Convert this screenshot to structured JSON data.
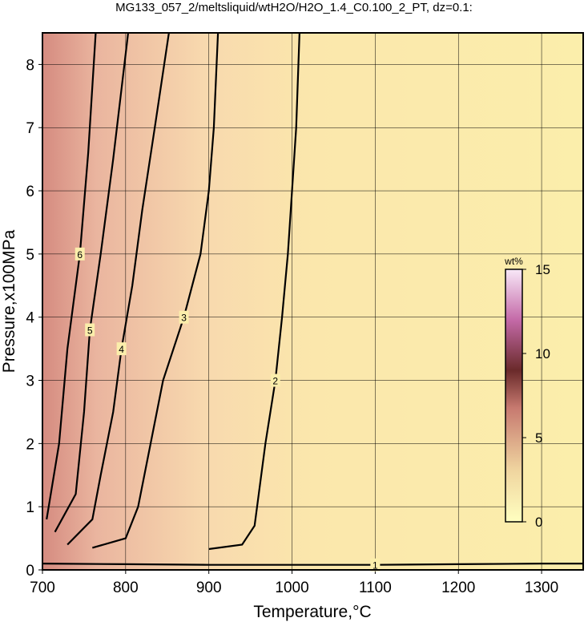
{
  "chart_data": {
    "type": "contour",
    "title": "MG133_057_2/meltsliquid/wtH2O/H2O_1.4_C0.100_2_PT, dz=0.1:",
    "xlabel": "Temperature,°C",
    "ylabel": "Pressure,x100MPa",
    "xlim": [
      700,
      1350
    ],
    "ylim": [
      0,
      8.5
    ],
    "xticks": [
      700,
      800,
      900,
      1000,
      1100,
      1200,
      1300
    ],
    "yticks": [
      0,
      1,
      2,
      3,
      4,
      5,
      6,
      7,
      8
    ],
    "grid": true,
    "color": "#000000",
    "contours": [
      {
        "level": 1,
        "x": [
          700,
          800,
          900,
          1000,
          1100,
          1200,
          1300,
          1350
        ],
        "y": [
          0.1,
          0.09,
          0.08,
          0.08,
          0.08,
          0.09,
          0.1,
          0.1
        ]
      },
      {
        "level": 2,
        "x": [
          900,
          940,
          955,
          960,
          968,
          980,
          988,
          995,
          1000,
          1005,
          1009
        ],
        "y": [
          0.33,
          0.4,
          0.7,
          1.2,
          2,
          3,
          4,
          5,
          6,
          7,
          8.5
        ]
      },
      {
        "level": 3,
        "x": [
          760,
          800,
          815,
          830,
          845,
          870,
          890,
          900,
          906,
          911
        ],
        "y": [
          0.35,
          0.5,
          1,
          2,
          3,
          4,
          5,
          6,
          7,
          8.5
        ]
      },
      {
        "level": 4,
        "x": [
          730,
          760,
          770,
          785,
          795,
          808,
          820,
          835,
          852
        ],
        "y": [
          0.4,
          0.8,
          1.5,
          2.5,
          3.5,
          4.5,
          5.7,
          7,
          8.5
        ]
      },
      {
        "level": 5,
        "x": [
          715,
          740,
          750,
          757,
          770,
          785,
          803
        ],
        "y": [
          0.6,
          1.2,
          2.5,
          3.8,
          5,
          6.5,
          8.5
        ]
      },
      {
        "level": 6,
        "x": [
          705,
          720,
          730,
          745,
          755,
          764
        ],
        "y": [
          0.8,
          2,
          3.5,
          5,
          6.6,
          8.5
        ]
      }
    ],
    "colorbar": {
      "label": "wt%",
      "lim": [
        0,
        15
      ],
      "ticks": [
        0,
        5,
        10,
        15
      ]
    }
  }
}
